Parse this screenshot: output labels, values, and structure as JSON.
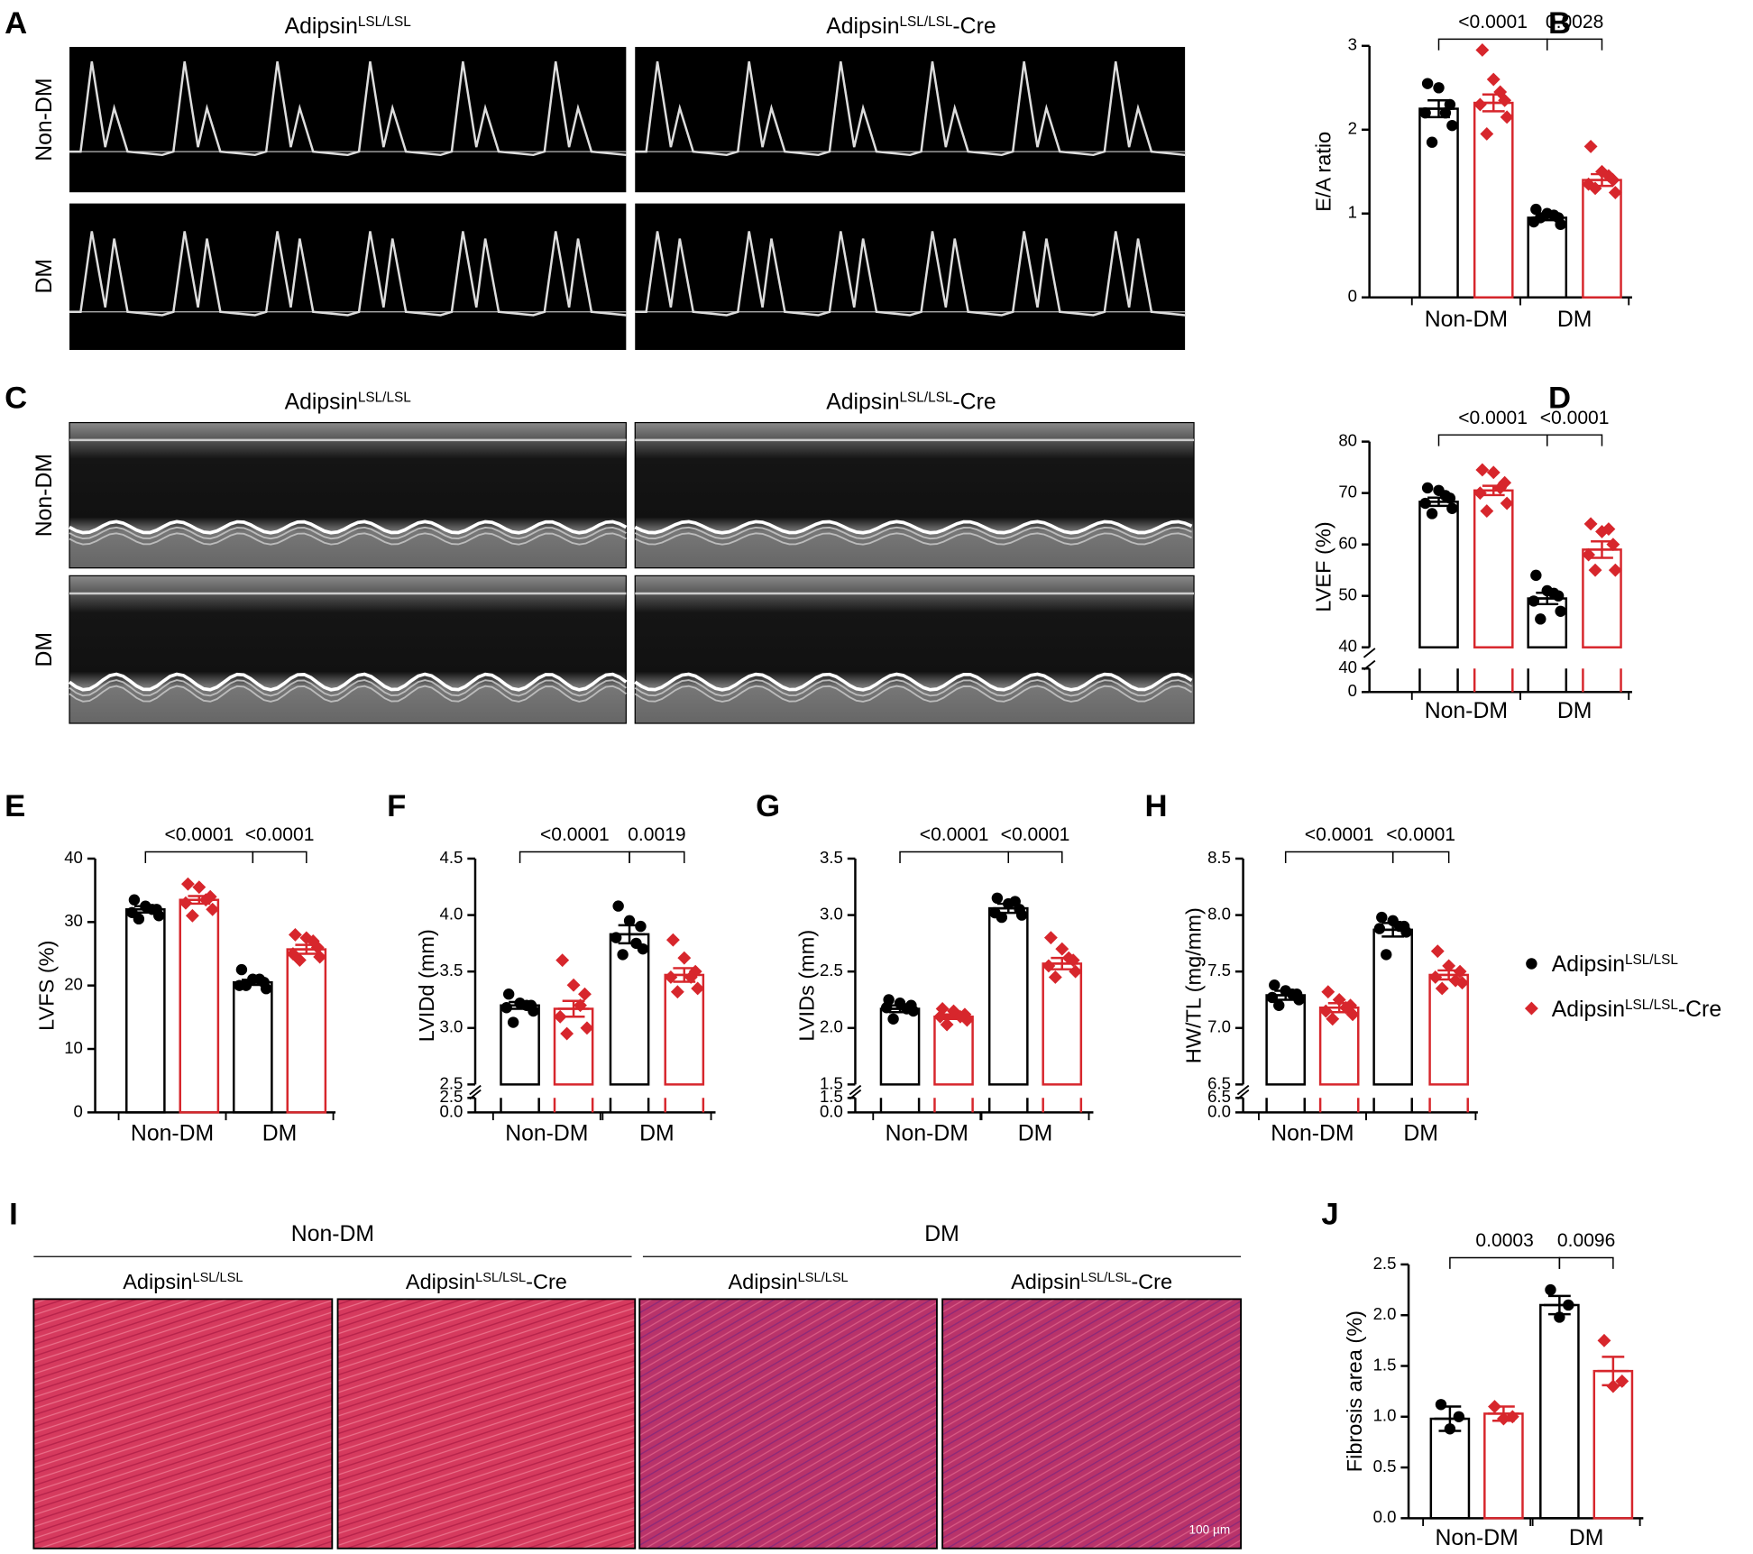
{
  "image_panels": [
    {
      "panel": "A",
      "columns": [
        {
          "name": "Adipsin",
          "superscript": "LSL/LSL"
        },
        {
          "name": "Adipsin",
          "superscript": "LSL/LSL",
          "suffix": "-Cre"
        }
      ],
      "rows": [
        "Non-DM",
        "DM"
      ]
    },
    {
      "panel": "C",
      "columns": [
        {
          "name": "Adipsin",
          "superscript": "LSL/LSL"
        },
        {
          "name": "Adipsin",
          "superscript": "LSL/LSL",
          "suffix": "-Cre"
        }
      ],
      "rows": [
        "Non-DM",
        "DM"
      ]
    },
    {
      "panel": "I",
      "groups": [
        {
          "name": "Non-DM",
          "columns": [
            {
              "name": "Adipsin",
              "superscript": "LSL/LSL"
            },
            {
              "name": "Adipsin",
              "superscript": "LSL/LSL",
              "suffix": "-Cre"
            }
          ]
        },
        {
          "name": "DM",
          "columns": [
            {
              "name": "Adipsin",
              "superscript": "LSL/LSL"
            },
            {
              "name": "Adipsin",
              "superscript": "LSL/LSL",
              "suffix": "-Cre"
            }
          ]
        }
      ],
      "scale_bar": "100 µm"
    }
  ],
  "legend": [
    {
      "name": "Adipsin",
      "superscript": "LSL/LSL",
      "color": "#000000",
      "marker": "circle"
    },
    {
      "name": "Adipsin",
      "superscript": "LSL/LSL",
      "suffix": "-Cre",
      "color": "#d7262c",
      "marker": "diamond"
    }
  ],
  "chart_data": [
    {
      "type": "bar",
      "panel": "B",
      "ylabel": "E/A ratio",
      "categories": [
        "Non-DM",
        "DM"
      ],
      "ylim": [
        0,
        3
      ],
      "yticks": [
        0,
        1,
        2,
        3
      ],
      "annotations": [
        "<0.0001",
        "0.0028"
      ],
      "series": [
        {
          "color": "#000000",
          "marker": "circle",
          "values": [
            2.25,
            0.95
          ],
          "errors": [
            0.1,
            0.03
          ],
          "points": [
            [
              2.55,
              2.5,
              2.3,
              2.2,
              2.05,
              1.85,
              2.2
            ],
            [
              1.05,
              1.0,
              0.95,
              0.9,
              0.87,
              0.95,
              0.98
            ]
          ]
        },
        {
          "color": "#d7262c",
          "marker": "diamond",
          "values": [
            2.32,
            1.4
          ],
          "errors": [
            0.1,
            0.07
          ],
          "points": [
            [
              2.95,
              2.6,
              2.35,
              2.3,
              2.15,
              1.95,
              2.45
            ],
            [
              1.8,
              1.5,
              1.4,
              1.35,
              1.25,
              1.3,
              1.45
            ]
          ]
        }
      ]
    },
    {
      "type": "bar",
      "panel": "D",
      "ylabel": "LVEF (%)",
      "categories": [
        "Non-DM",
        "DM"
      ],
      "ylim": [
        40,
        80
      ],
      "yticks": [
        40,
        50,
        60,
        70,
        80
      ],
      "lower_ylim": [
        0,
        40
      ],
      "lower_yticks": [
        0,
        40
      ],
      "annotations": [
        "<0.0001",
        "<0.0001"
      ],
      "series": [
        {
          "color": "#000000",
          "marker": "circle",
          "values": [
            68.3,
            49.5
          ],
          "errors": [
            0.8,
            1.1
          ],
          "points": [
            [
              71,
              70.5,
              69,
              68,
              67,
              66,
              69.5
            ],
            [
              54,
              51,
              50,
              49,
              47,
              45.5,
              50.5
            ]
          ]
        },
        {
          "color": "#d7262c",
          "marker": "diamond",
          "values": [
            70.5,
            59
          ],
          "errors": [
            0.9,
            1.6
          ],
          "points": [
            [
              74.5,
              74,
              72,
              70,
              68,
              66.5,
              71
            ],
            [
              64,
              62.5,
              60,
              58,
              55,
              55,
              63
            ]
          ]
        }
      ]
    },
    {
      "type": "bar",
      "panel": "E",
      "ylabel": "LVFS (%)",
      "categories": [
        "Non-DM",
        "DM"
      ],
      "ylim": [
        0,
        40
      ],
      "yticks": [
        0,
        10,
        20,
        30,
        40
      ],
      "annotations": [
        "<0.0001",
        "<0.0001"
      ],
      "series": [
        {
          "color": "#000000",
          "marker": "circle",
          "values": [
            32,
            20.5
          ],
          "errors": [
            0.5,
            0.4
          ],
          "points": [
            [
              33.5,
              32.5,
              32,
              31.5,
              31,
              30.5,
              32
            ],
            [
              22.5,
              21,
              20.5,
              20,
              19.5,
              20,
              21
            ]
          ]
        },
        {
          "color": "#d7262c",
          "marker": "diamond",
          "values": [
            33.5,
            25.7
          ],
          "errors": [
            0.6,
            0.7
          ],
          "points": [
            [
              36,
              35.5,
              34,
              33,
              32,
              31,
              33.5
            ],
            [
              28,
              27.5,
              26,
              25,
              24.5,
              24,
              27
            ]
          ]
        }
      ]
    },
    {
      "type": "bar",
      "panel": "F",
      "ylabel": "LVIDd (mm)",
      "categories": [
        "Non-DM",
        "DM"
      ],
      "ylim": [
        2.5,
        4.5
      ],
      "yticks": [
        2.5,
        {
          "value": 3,
          "label": "3.0"
        },
        3.5,
        {
          "value": 4,
          "label": "4.0"
        },
        4.5
      ],
      "lower_ylim": [
        0,
        2.5
      ],
      "lower_yticks": [
        {
          "value": 0,
          "label": "0.0"
        },
        2.5
      ],
      "annotations": [
        "<0.0001",
        "0.0019"
      ],
      "series": [
        {
          "color": "#000000",
          "marker": "circle",
          "values": [
            3.2,
            3.83
          ],
          "errors": [
            0.03,
            0.08
          ],
          "points": [
            [
              3.3,
              3.22,
              3.2,
              3.18,
              3.15,
              3.05,
              3.2
            ],
            [
              4.08,
              3.95,
              3.9,
              3.8,
              3.7,
              3.65,
              3.75
            ]
          ]
        },
        {
          "color": "#d7262c",
          "marker": "diamond",
          "values": [
            3.17,
            3.47
          ],
          "errors": [
            0.07,
            0.06
          ],
          "points": [
            [
              3.6,
              3.38,
              3.3,
              3.1,
              3.0,
              2.95,
              3.2
            ],
            [
              3.78,
              3.62,
              3.5,
              3.45,
              3.35,
              3.32,
              3.45
            ]
          ]
        }
      ]
    },
    {
      "type": "bar",
      "panel": "G",
      "ylabel": "LVIDs (mm)",
      "categories": [
        "Non-DM",
        "DM"
      ],
      "ylim": [
        1.5,
        3.5
      ],
      "yticks": [
        1.5,
        {
          "value": 2,
          "label": "2.0"
        },
        2.5,
        {
          "value": 3,
          "label": "3.0"
        },
        3.5
      ],
      "lower_ylim": [
        0,
        1.5
      ],
      "lower_yticks": [
        {
          "value": 0,
          "label": "0.0"
        },
        1.5
      ],
      "annotations": [
        "<0.0001",
        "<0.0001"
      ],
      "series": [
        {
          "color": "#000000",
          "marker": "circle",
          "values": [
            2.17,
            3.06
          ],
          "errors": [
            0.03,
            0.04
          ],
          "points": [
            [
              2.25,
              2.22,
              2.2,
              2.18,
              2.15,
              2.08,
              2.17
            ],
            [
              3.15,
              3.1,
              3.05,
              3.02,
              3.0,
              2.98,
              3.12
            ]
          ]
        },
        {
          "color": "#d7262c",
          "marker": "diamond",
          "values": [
            2.1,
            2.57
          ],
          "errors": [
            0.02,
            0.05
          ],
          "points": [
            [
              2.17,
              2.15,
              2.12,
              2.1,
              2.07,
              2.03,
              2.1
            ],
            [
              2.8,
              2.7,
              2.6,
              2.55,
              2.5,
              2.45,
              2.62
            ]
          ]
        }
      ]
    },
    {
      "type": "bar",
      "panel": "H",
      "ylabel": "HW/TL (mg/mm)",
      "categories": [
        "Non-DM",
        "DM"
      ],
      "ylim": [
        6.5,
        8.5
      ],
      "yticks": [
        6.5,
        {
          "value": 7,
          "label": "7.0"
        },
        7.5,
        {
          "value": 8,
          "label": "8.0"
        },
        8.5
      ],
      "lower_ylim": [
        0,
        6.5
      ],
      "lower_yticks": [
        {
          "value": 0,
          "label": "0.0"
        },
        6.5
      ],
      "annotations": [
        "<0.0001",
        "<0.0001"
      ],
      "series": [
        {
          "color": "#000000",
          "marker": "circle",
          "values": [
            7.29,
            7.87
          ],
          "errors": [
            0.04,
            0.06
          ],
          "points": [
            [
              7.38,
              7.33,
              7.3,
              7.27,
              7.25,
              7.2,
              7.3
            ],
            [
              7.98,
              7.95,
              7.9,
              7.88,
              7.85,
              7.65,
              7.9
            ]
          ]
        },
        {
          "color": "#d7262c",
          "marker": "diamond",
          "values": [
            7.18,
            7.47
          ],
          "errors": [
            0.04,
            0.04
          ],
          "points": [
            [
              7.32,
              7.25,
              7.2,
              7.15,
              7.12,
              7.08,
              7.18
            ],
            [
              7.68,
              7.55,
              7.5,
              7.45,
              7.4,
              7.35,
              7.42
            ]
          ]
        }
      ]
    },
    {
      "type": "bar",
      "panel": "J",
      "ylabel": "Fibrosis area (%)",
      "categories": [
        "Non-DM",
        "DM"
      ],
      "ylim": [
        0,
        2.5
      ],
      "yticks": [
        {
          "value": 0,
          "label": "0.0"
        },
        0.5,
        {
          "value": 1,
          "label": "1.0"
        },
        1.5,
        {
          "value": 2,
          "label": "2.0"
        },
        2.5
      ],
      "annotations": [
        "0.0003",
        "0.0096"
      ],
      "series": [
        {
          "color": "#000000",
          "marker": "circle",
          "values": [
            0.98,
            2.1
          ],
          "errors": [
            0.12,
            0.09
          ],
          "points": [
            [
              1.12,
              1.0,
              0.88
            ],
            [
              2.25,
              2.1,
              1.98
            ]
          ]
        },
        {
          "color": "#d7262c",
          "marker": "diamond",
          "values": [
            1.03,
            1.45
          ],
          "errors": [
            0.07,
            0.14
          ],
          "points": [
            [
              1.1,
              1.0,
              0.98
            ],
            [
              1.75,
              1.35,
              1.3
            ]
          ]
        }
      ]
    }
  ]
}
